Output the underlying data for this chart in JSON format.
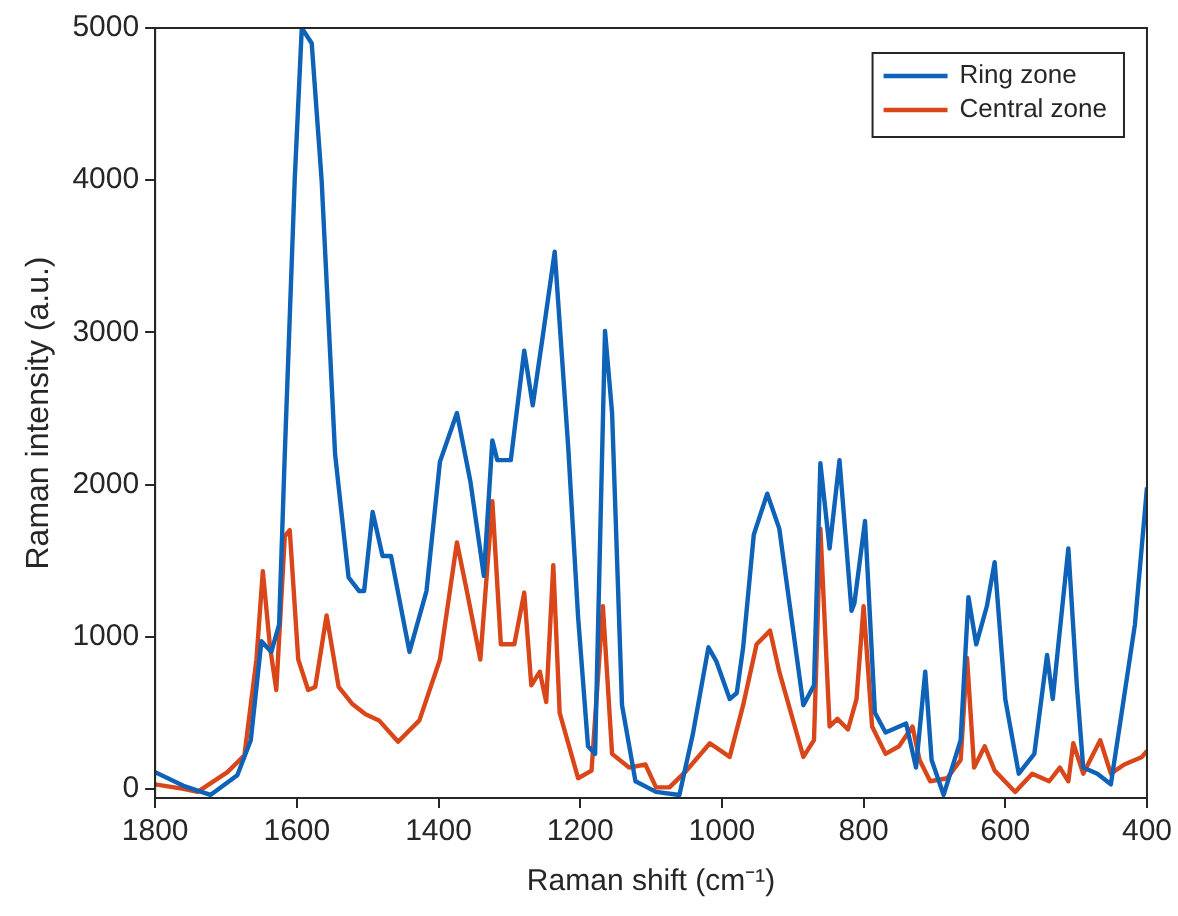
{
  "chart_data": {
    "type": "line",
    "xlabel": "Raman shift (cm⁻¹)",
    "ylabel": "Raman intensity (a.u.)",
    "xlim": [
      1800,
      400
    ],
    "xticks": [
      1800,
      1600,
      1400,
      1200,
      1000,
      800,
      600,
      400
    ],
    "ylim": [
      -60,
      5000
    ],
    "yticks": [
      0,
      1000,
      2000,
      3000,
      4000,
      5000
    ],
    "grid": false,
    "legend": "top right",
    "marker": "none",
    "line_style": "solid",
    "series": [
      {
        "name": "Ring zone",
        "color": "#0e62b8",
        "x": [
          1800,
          1760,
          1722,
          1684,
          1665,
          1650,
          1636,
          1625,
          1617,
          1603,
          1593,
          1579,
          1565,
          1546,
          1527,
          1512,
          1505,
          1493,
          1479,
          1467,
          1441,
          1417,
          1398,
          1374,
          1355,
          1336,
          1324,
          1317,
          1298,
          1279,
          1267,
          1253,
          1236,
          1217,
          1203,
          1189,
          1179,
          1165,
          1155,
          1141,
          1122,
          1093,
          1060,
          1041,
          1019,
          1008,
          989,
          979,
          970,
          955,
          936,
          919,
          885,
          870,
          861,
          848,
          834,
          817,
          813,
          798,
          784,
          769,
          740,
          726,
          713,
          704,
          687,
          663,
          652,
          641,
          626,
          615,
          600,
          581,
          559,
          541,
          533,
          511,
          499,
          490,
          470,
          451,
          437,
          417,
          400
        ],
        "values": [
          110,
          20,
          -40,
          90,
          320,
          970,
          900,
          1080,
          2200,
          4000,
          5000,
          4900,
          4000,
          2200,
          1390,
          1300,
          1300,
          1820,
          1530,
          1530,
          900,
          1300,
          2150,
          2470,
          2020,
          1400,
          2290,
          2160,
          2160,
          2880,
          2520,
          2970,
          3530,
          2250,
          1130,
          280,
          230,
          3010,
          2470,
          550,
          50,
          -20,
          -40,
          360,
          930,
          840,
          590,
          630,
          930,
          1670,
          1940,
          1710,
          550,
          680,
          2140,
          1580,
          2160,
          1170,
          1220,
          1760,
          500,
          370,
          430,
          140,
          770,
          190,
          -40,
          320,
          1260,
          950,
          1200,
          1490,
          590,
          100,
          230,
          880,
          590,
          1580,
          680,
          140,
          100,
          30,
          460,
          1080,
          1980
        ]
      },
      {
        "name": "Central zone",
        "color": "#d9461a",
        "x": [
          1800,
          1760,
          1740,
          1698,
          1674,
          1657,
          1648,
          1638,
          1629,
          1617,
          1610,
          1598,
          1584,
          1574,
          1558,
          1541,
          1522,
          1503,
          1484,
          1457,
          1427,
          1398,
          1374,
          1360,
          1341,
          1324,
          1312,
          1293,
          1279,
          1269,
          1257,
          1248,
          1238,
          1229,
          1203,
          1184,
          1168,
          1155,
          1131,
          1108,
          1093,
          1074,
          1050,
          1017,
          989,
          970,
          951,
          932,
          919,
          885,
          870,
          861,
          848,
          837,
          822,
          810,
          800,
          788,
          769,
          750,
          731,
          721,
          706,
          682,
          663,
          654,
          644,
          629,
          615,
          586,
          562,
          538,
          523,
          511,
          504,
          490,
          466,
          451,
          432,
          407,
          400
        ],
        "values": [
          30,
          0,
          -20,
          110,
          220,
          850,
          1430,
          940,
          650,
          1660,
          1700,
          850,
          650,
          670,
          1140,
          670,
          560,
          490,
          450,
          310,
          450,
          850,
          1620,
          1300,
          850,
          1890,
          950,
          950,
          1290,
          680,
          770,
          570,
          1470,
          500,
          70,
          120,
          1200,
          230,
          140,
          160,
          10,
          10,
          120,
          300,
          210,
          550,
          950,
          1040,
          770,
          210,
          320,
          1710,
          410,
          460,
          390,
          590,
          1200,
          410,
          230,
          280,
          410,
          190,
          50,
          70,
          190,
          860,
          140,
          280,
          120,
          -20,
          100,
          50,
          140,
          50,
          300,
          100,
          320,
          100,
          160,
          210,
          250
        ]
      }
    ]
  }
}
